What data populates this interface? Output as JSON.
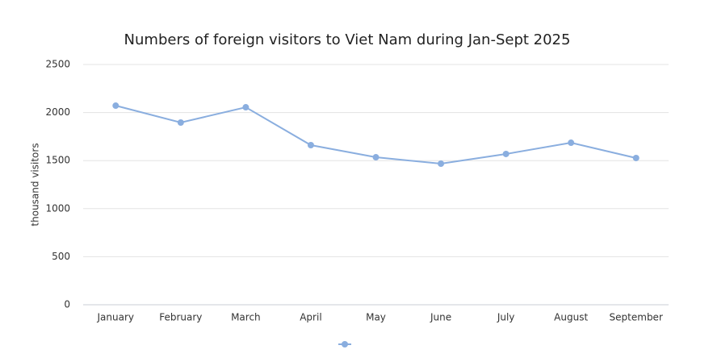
{
  "chart_data": {
    "type": "line",
    "title": "Numbers of foreign visitors to Viet Nam during Jan-Sept 2025",
    "y_label": "thousand visitors",
    "categories": [
      "January",
      "February",
      "March",
      "April",
      "May",
      "June",
      "July",
      "August",
      "September"
    ],
    "series": [
      {
        "color": "#8aaedf",
        "values": [
          2072,
          1896,
          2055,
          1661,
          1535,
          1468,
          1569,
          1686,
          1527
        ]
      }
    ],
    "ylim": [
      0,
      2500
    ],
    "yticks": [
      0,
      500,
      1000,
      1500,
      2000,
      2500
    ],
    "grid": true,
    "legend": "bottom"
  }
}
